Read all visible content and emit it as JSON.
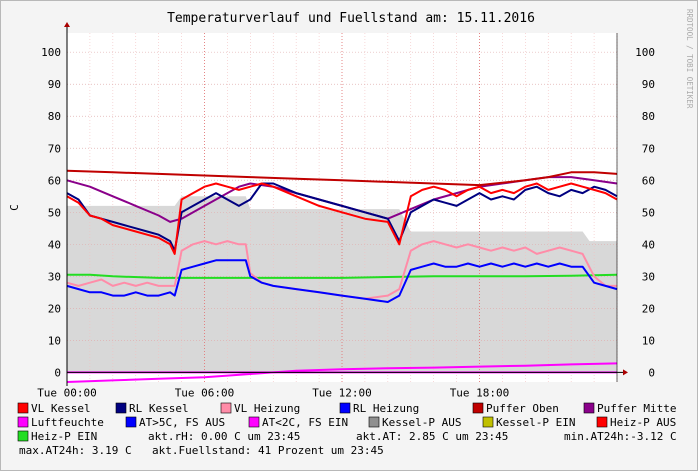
{
  "chart_data": {
    "type": "line",
    "title": "Temperaturverlauf und Fuellstand am: 15.11.2016",
    "ylabel": "C",
    "watermark": "RRDTOOL / TOBI OETIKER",
    "ylim": [
      -3,
      106
    ],
    "yticks": [
      0,
      10,
      20,
      30,
      40,
      50,
      60,
      70,
      80,
      90,
      100
    ],
    "xlim": [
      0,
      24
    ],
    "xticks": [
      {
        "x": 0,
        "label": "Tue 00:00"
      },
      {
        "x": 6,
        "label": "Tue 06:00"
      },
      {
        "x": 12,
        "label": "Tue 12:00"
      },
      {
        "x": 18,
        "label": "Tue 18:00"
      }
    ],
    "grid": true,
    "colors": {
      "vl_kessel": "#ff0000",
      "rl_kessel": "#000080",
      "vl_heizung": "#ff8ca8",
      "rl_heizung": "#0000ff",
      "puffer_oben": "#c00000",
      "puffer_mitte": "#8a008a",
      "luftfeuchte": "#ff00ff",
      "at_gt5": "#0000ff",
      "at_lt2": "#ff00ff",
      "kessel_p_aus": "#909090",
      "kessel_p_ein": "#c0c000",
      "heiz_p_aus": "#ff0000",
      "heiz_p_ein": "#22dd22",
      "area_bg": "#d8d8d8",
      "area_dark": "#c8c8c8"
    },
    "series": [
      {
        "key": "vl_kessel",
        "name": "VL Kessel",
        "x": [
          0,
          0.5,
          1,
          1.5,
          2,
          2.5,
          3,
          3.5,
          4,
          4.5,
          4.7,
          5,
          5.5,
          6,
          6.5,
          7,
          7.5,
          8,
          8.5,
          9,
          10,
          11,
          12,
          13,
          14,
          14.5,
          15,
          15.5,
          16,
          16.5,
          17,
          17.5,
          18,
          18.5,
          19,
          19.5,
          20,
          20.5,
          21,
          21.5,
          22,
          22.5,
          23,
          23.5,
          24
        ],
        "y": [
          55,
          53,
          49,
          48,
          46,
          45,
          44,
          43,
          42,
          40,
          37,
          54,
          56,
          58,
          59,
          58,
          57,
          58,
          59,
          58,
          55,
          52,
          50,
          48,
          47,
          40,
          55,
          57,
          58,
          57,
          55,
          57,
          58,
          56,
          57,
          56,
          58,
          59,
          57,
          58,
          59,
          58,
          57,
          56,
          54
        ]
      },
      {
        "key": "rl_kessel",
        "name": "RL Kessel",
        "x": [
          0,
          0.5,
          1,
          1.5,
          2,
          2.5,
          3,
          3.5,
          4,
          4.5,
          4.7,
          5,
          5.5,
          6,
          6.5,
          7,
          7.5,
          8,
          8.5,
          9,
          10,
          11,
          12,
          13,
          14,
          14.5,
          15,
          15.5,
          16,
          16.5,
          17,
          17.5,
          18,
          18.5,
          19,
          19.5,
          20,
          20.5,
          21,
          21.5,
          22,
          22.5,
          23,
          23.5,
          24
        ],
        "y": [
          56,
          54,
          49,
          48,
          47,
          46,
          45,
          44,
          43,
          41,
          38,
          50,
          52,
          54,
          56,
          54,
          52,
          54,
          59,
          59,
          56,
          54,
          52,
          50,
          48,
          41,
          50,
          52,
          54,
          53,
          52,
          54,
          56,
          54,
          55,
          54,
          57,
          58,
          56,
          55,
          57,
          56,
          58,
          57,
          55
        ]
      },
      {
        "key": "vl_heizung",
        "name": "VL Heizung",
        "x": [
          0,
          0.5,
          1,
          1.5,
          2,
          2.5,
          3,
          3.5,
          4,
          4.5,
          4.7,
          5,
          5.5,
          6,
          6.5,
          7,
          7.5,
          7.8,
          8,
          8.5,
          9,
          10,
          11,
          12,
          13,
          14,
          14.5,
          15,
          15.5,
          16,
          16.5,
          17,
          17.5,
          18,
          18.5,
          19,
          19.5,
          20,
          20.5,
          21,
          21.5,
          22,
          22.5,
          23,
          23.5,
          24
        ],
        "y": [
          28,
          27,
          28,
          29,
          27,
          28,
          27,
          28,
          27,
          27,
          27,
          38,
          40,
          41,
          40,
          41,
          40,
          40,
          31,
          28,
          27,
          26,
          25,
          24,
          23,
          24,
          26,
          38,
          40,
          41,
          40,
          39,
          40,
          39,
          38,
          39,
          38,
          39,
          37,
          38,
          39,
          38,
          37,
          30,
          27,
          27
        ]
      },
      {
        "key": "rl_heizung",
        "name": "RL Heizung",
        "x": [
          0,
          0.5,
          1,
          1.5,
          2,
          2.5,
          3,
          3.5,
          4,
          4.5,
          4.7,
          5,
          5.5,
          6,
          6.5,
          7,
          7.5,
          7.8,
          8,
          8.5,
          9,
          10,
          11,
          12,
          13,
          14,
          14.5,
          15,
          15.5,
          16,
          16.5,
          17,
          17.5,
          18,
          18.5,
          19,
          19.5,
          20,
          20.5,
          21,
          21.5,
          22,
          22.5,
          23,
          23.5,
          24
        ],
        "y": [
          27,
          26,
          25,
          25,
          24,
          24,
          25,
          24,
          24,
          25,
          24,
          32,
          33,
          34,
          35,
          35,
          35,
          35,
          30,
          28,
          27,
          26,
          25,
          24,
          23,
          22,
          24,
          32,
          33,
          34,
          33,
          33,
          34,
          33,
          34,
          33,
          34,
          33,
          34,
          33,
          34,
          33,
          33,
          28,
          27,
          26
        ]
      },
      {
        "key": "puffer_oben",
        "name": "Puffer Oben",
        "x": [
          0,
          2,
          4,
          6,
          8,
          10,
          12,
          14,
          16,
          18,
          20,
          21,
          22,
          23,
          24
        ],
        "y": [
          63,
          62.5,
          62,
          61.5,
          61,
          60.5,
          60,
          59.5,
          59,
          58.5,
          60,
          61,
          62.5,
          62.5,
          62
        ]
      },
      {
        "key": "puffer_mitte",
        "name": "Puffer Mitte",
        "x": [
          0,
          1,
          2,
          3,
          4,
          4.5,
          5,
          6,
          7,
          7.5,
          8,
          9,
          10,
          11,
          12,
          13,
          14,
          15,
          16,
          17,
          18,
          19,
          20,
          21,
          22,
          23,
          24
        ],
        "y": [
          60,
          58,
          55,
          52,
          49,
          47,
          48,
          52,
          56,
          58,
          59,
          58,
          56,
          54,
          52,
          50,
          48,
          51,
          54,
          56,
          58,
          59,
          60,
          61,
          61,
          60,
          59
        ]
      },
      {
        "key": "luftfeuchte",
        "name": "Luftfeuchte",
        "x": [
          0,
          24
        ],
        "y": [
          0,
          0
        ]
      },
      {
        "key": "at_gt5",
        "name": "AT>5C, FS AUS",
        "x": [],
        "y": []
      },
      {
        "key": "at_lt2",
        "name": "AT<2C, FS EIN",
        "x": [
          0,
          2,
          4,
          6,
          8,
          10,
          12,
          14,
          16,
          18,
          20,
          22,
          24
        ],
        "y": [
          -3,
          -2.5,
          -2,
          -1.5,
          -0.5,
          0.5,
          1,
          1.3,
          1.5,
          1.8,
          2.1,
          2.5,
          2.8
        ]
      },
      {
        "key": "kessel_p_aus",
        "name": "Kessel-P AUS",
        "x": [
          0,
          4.7,
          5,
          7.8,
          8,
          14.5,
          15,
          22.5,
          22.8,
          24
        ],
        "y": [
          52,
          52,
          55,
          55,
          51,
          51,
          44,
          44,
          41,
          41
        ]
      },
      {
        "key": "kessel_p_ein",
        "name": "Kessel-P EIN",
        "x": [],
        "y": []
      },
      {
        "key": "heiz_p_aus",
        "name": "Heiz-P AUS",
        "x": [],
        "y": []
      },
      {
        "key": "heiz_p_ein",
        "name": "Heiz-P EIN",
        "x": [
          0,
          1,
          2,
          4,
          6,
          8,
          10,
          12,
          14,
          16,
          18,
          20,
          22,
          24
        ],
        "y": [
          30.5,
          30.5,
          30,
          29.5,
          29.5,
          29.5,
          29.5,
          29.5,
          29.8,
          30,
          30,
          30,
          30.2,
          30.5
        ]
      }
    ],
    "status": [
      {
        "key": "rh",
        "text": "akt.rH: 0.00 C um 23:45"
      },
      {
        "key": "at",
        "text": "akt.AT: 2.85 C um 23:45"
      },
      {
        "key": "min",
        "text": "min.AT24h:-3.12 C"
      },
      {
        "key": "max",
        "text": "max.AT24h: 3.19 C"
      },
      {
        "key": "fs",
        "text": "akt.Fuellstand:   41 Prozent um 23:45"
      }
    ]
  }
}
